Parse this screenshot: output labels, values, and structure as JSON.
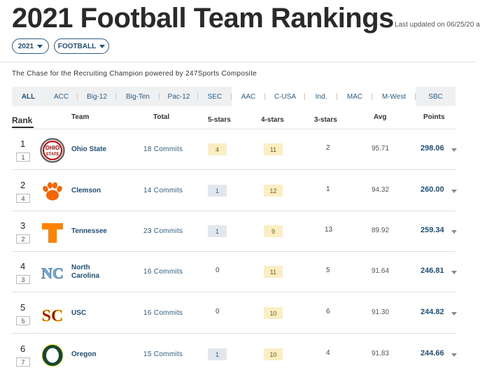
{
  "header": {
    "title": "2021 Football Team Rankings",
    "updated": "Last updated on 06/25/20 a"
  },
  "filters": {
    "year": "2021",
    "sport": "FOOTBALL"
  },
  "subtitle": "The Chase for the Recruiting Champion powered by 247Sports Composite",
  "conferences": [
    "ALL",
    "ACC",
    "Big-12",
    "Big-Ten",
    "Pac-12",
    "SEC",
    "AAC",
    "C-USA",
    "Ind.",
    "MAC",
    "M-West",
    "SBC"
  ],
  "columns": {
    "rank": "Rank",
    "team": "Team",
    "total": "Total",
    "five": "5-stars",
    "four": "4-stars",
    "three": "3-stars",
    "avg": "Avg",
    "points": "Points"
  },
  "rows": [
    {
      "rank": "1",
      "prev": "1",
      "team": "Ohio State",
      "commits": "18 Commits",
      "five": "4",
      "four": "11",
      "three": "2",
      "avg": "95.71",
      "points": "298.06"
    },
    {
      "rank": "2",
      "prev": "4",
      "team": "Clemson",
      "commits": "14 Commits",
      "five": "1",
      "four": "12",
      "three": "1",
      "avg": "94.32",
      "points": "260.00"
    },
    {
      "rank": "3",
      "prev": "2",
      "team": "Tennessee",
      "commits": "23 Commits",
      "five": "1",
      "four": "9",
      "three": "13",
      "avg": "89.92",
      "points": "259.34"
    },
    {
      "rank": "4",
      "prev": "3",
      "team": "North Carolina",
      "team_line1": "North",
      "team_line2": "Carolina",
      "commits": "16 Commits",
      "five": "0",
      "four": "11",
      "three": "5",
      "avg": "91.64",
      "points": "246.81"
    },
    {
      "rank": "5",
      "prev": "5",
      "team": "USC",
      "commits": "16 Commits",
      "five": "0",
      "four": "10",
      "three": "6",
      "avg": "91.30",
      "points": "244.82"
    },
    {
      "rank": "6",
      "prev": "7",
      "team": "Oregon",
      "commits": "15 Commits",
      "five": "1",
      "four": "10",
      "three": "4",
      "avg": "91.83",
      "points": "244.66"
    }
  ],
  "logos": {
    "ohio_state": {
      "icon": "ohio-state-logo",
      "colors": [
        "#bb0000",
        "#666666"
      ],
      "text": "OHIO STATE"
    },
    "clemson": {
      "icon": "clemson-paw-logo",
      "color": "#f56600"
    },
    "tennessee": {
      "icon": "tennessee-t-logo",
      "color": "#ff8200"
    },
    "unc": {
      "icon": "unc-logo",
      "color": "#7bafd4",
      "text": "NC"
    },
    "usc": {
      "icon": "usc-logo",
      "colors": [
        "#990000",
        "#ffc72c"
      ],
      "text": "SC"
    },
    "oregon": {
      "icon": "oregon-o-logo",
      "colors": [
        "#154733",
        "#fee123"
      ]
    }
  },
  "colors": {
    "accent": "#1d4f7a",
    "yellow_box": "#fbeec2",
    "blue_box": "#e1e7ed"
  }
}
